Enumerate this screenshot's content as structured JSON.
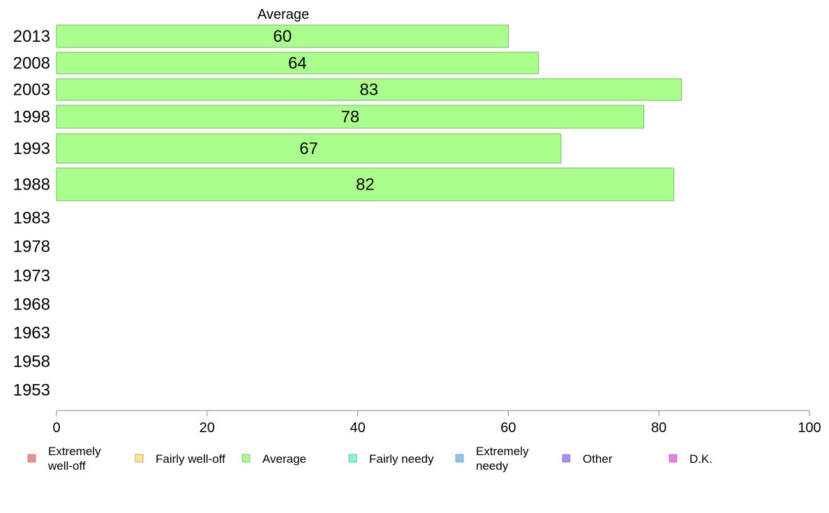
{
  "chart_data": {
    "type": "bar",
    "orientation": "horizontal",
    "series_title": "Average",
    "categories": [
      "2013",
      "2008",
      "2003",
      "1998",
      "1993",
      "1988",
      "1983",
      "1978",
      "1973",
      "1968",
      "1963",
      "1958",
      "1953"
    ],
    "series": [
      {
        "name": "Average",
        "color": "#aaff8c",
        "values": [
          60,
          64,
          83,
          78,
          67,
          82,
          null,
          null,
          null,
          null,
          null,
          null,
          null
        ]
      }
    ],
    "data_labels": [
      "60",
      "64",
      "83",
      "78",
      "67",
      "82"
    ],
    "xlim": [
      0,
      100
    ],
    "xticks": [
      "0",
      "20",
      "40",
      "60",
      "80",
      "100"
    ],
    "grid": false,
    "legend": {
      "placement": "bottom",
      "items": [
        {
          "label": "Extremely well-off",
          "lines": [
            "Extremely",
            "well-off"
          ],
          "color": "#f88a8a"
        },
        {
          "label": "Fairly well-off",
          "lines": [
            "Fairly well-off"
          ],
          "color": "#ffe888"
        },
        {
          "label": "Average",
          "lines": [
            "Average"
          ],
          "color": "#aaff8c"
        },
        {
          "label": "Fairly needy",
          "lines": [
            "Fairly needy"
          ],
          "color": "#7fffc8"
        },
        {
          "label": "Extremely needy",
          "lines": [
            "Extremely",
            "needy"
          ],
          "color": "#88c8f8"
        },
        {
          "label": "Other",
          "lines": [
            "Other"
          ],
          "color": "#a88af8"
        },
        {
          "label": "D.K.",
          "lines": [
            "D.K."
          ],
          "color": "#f878f0"
        }
      ]
    }
  }
}
